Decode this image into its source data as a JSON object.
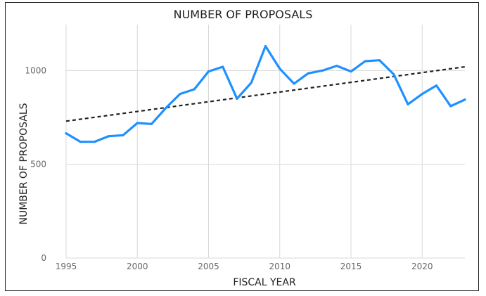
{
  "chart_data": {
    "type": "line",
    "title": "NUMBER OF PROPOSALS",
    "xlabel": "FISCAL YEAR",
    "ylabel": "NUMBER OF PROPOSALS",
    "xlim": [
      1995,
      2023
    ],
    "ylim": [
      0,
      1200
    ],
    "x_ticks": [
      1995,
      2000,
      2005,
      2010,
      2015,
      2020
    ],
    "y_ticks": [
      0,
      500,
      1000
    ],
    "grid": true,
    "legend": "none",
    "series": [
      {
        "color": "#1e90ff",
        "x": [
          1995,
          1996,
          1997,
          1998,
          1999,
          2000,
          2001,
          2002,
          2003,
          2004,
          2005,
          2006,
          2007,
          2008,
          2009,
          2010,
          2011,
          2012,
          2013,
          2014,
          2015,
          2016,
          2017,
          2018,
          2019,
          2020,
          2021,
          2022,
          2023
        ],
        "values": [
          665,
          620,
          620,
          650,
          655,
          720,
          715,
          800,
          875,
          900,
          995,
          1020,
          850,
          935,
          1130,
          1010,
          930,
          985,
          1000,
          1025,
          995,
          1050,
          1055,
          980,
          820,
          875,
          920,
          810,
          845
        ]
      }
    ],
    "trendline": {
      "style": "dashed",
      "color": "#222222",
      "x": [
        1995,
        2023
      ],
      "values": [
        730,
        1020
      ]
    }
  }
}
